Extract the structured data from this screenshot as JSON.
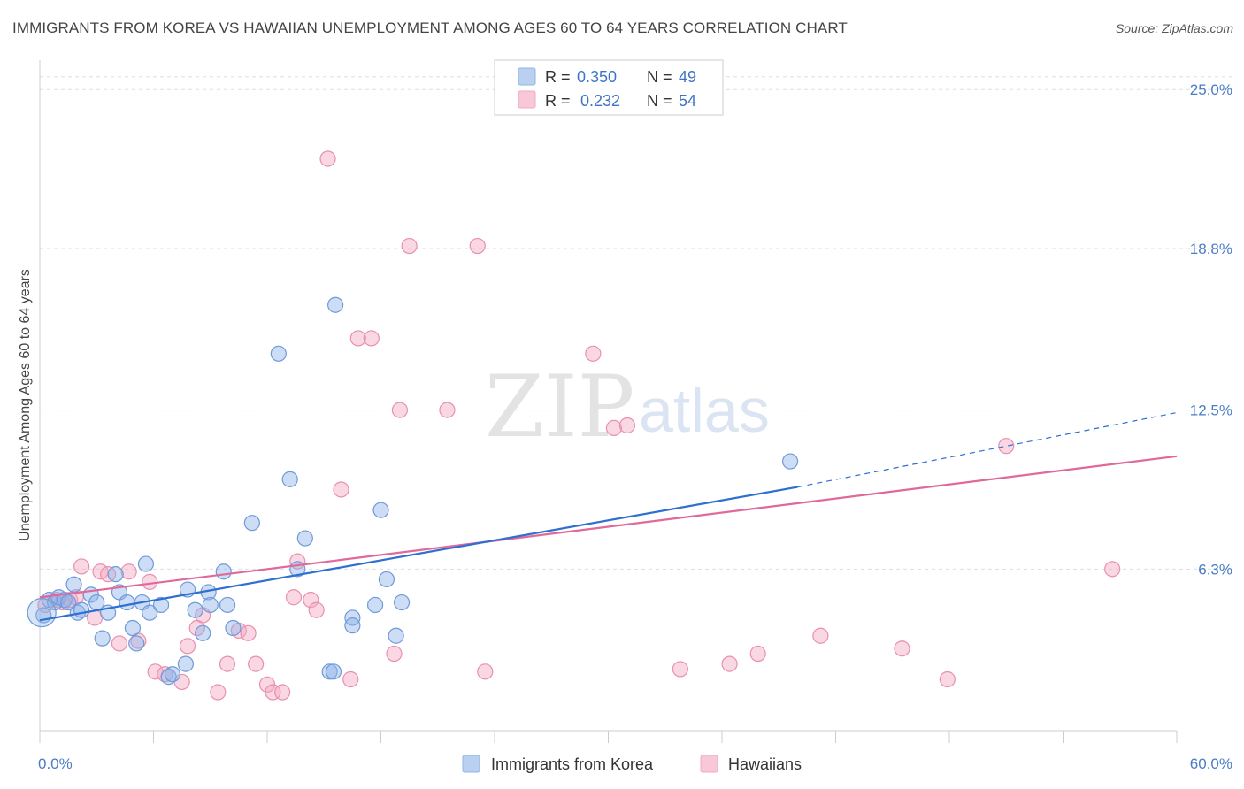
{
  "title": "IMMIGRANTS FROM KOREA VS HAWAIIAN UNEMPLOYMENT AMONG AGES 60 TO 64 YEARS CORRELATION CHART",
  "source": "Source: ZipAtlas.com",
  "watermark": {
    "zip": "ZIP",
    "atlas": "atlas"
  },
  "legend": {
    "korea": {
      "r_label": "R =",
      "r_value": "0.350",
      "n_label": "N =",
      "n_value": "49"
    },
    "hawaii": {
      "r_label": "R =",
      "r_value": "0.232",
      "n_label": "N =",
      "n_value": "54"
    }
  },
  "chart_data": {
    "type": "scatter",
    "title": "IMMIGRANTS FROM KOREA VS HAWAIIAN UNEMPLOYMENT AMONG AGES 60 TO 64 YEARS CORRELATION CHART",
    "xlabel": "",
    "ylabel": "Unemployment Among Ages 60 to 64 years",
    "xlim": [
      0,
      60
    ],
    "ylim": [
      0,
      25.8
    ],
    "x_tick_labels": [
      "0.0%",
      "60.0%"
    ],
    "y_ticks": [
      6.3,
      12.5,
      18.8,
      25.0
    ],
    "y_tick_labels": [
      "6.3%",
      "12.5%",
      "18.8%",
      "25.0%"
    ],
    "grid": true,
    "legend_position": "top-center",
    "colors": {
      "korea": "#8fb4e8",
      "korea_line": "#2e6fd0",
      "hawaii": "#f2a9c2",
      "hawaii_line": "#e0689a"
    },
    "series": [
      {
        "name": "Immigrants from Korea",
        "r": 0.35,
        "n": 49,
        "trend": {
          "x0": 0,
          "y0": 4.3,
          "x1": 40,
          "y1": 9.5,
          "dashed_to_x": 60,
          "dashed_to_y": 12.4
        },
        "points": [
          [
            0.2,
            4.5
          ],
          [
            0.5,
            5.1
          ],
          [
            0.8,
            5.0
          ],
          [
            1.0,
            5.2
          ],
          [
            1.3,
            5.1
          ],
          [
            1.5,
            5.0
          ],
          [
            1.8,
            5.7
          ],
          [
            2.0,
            4.6
          ],
          [
            2.2,
            4.7
          ],
          [
            2.7,
            5.3
          ],
          [
            3.0,
            5.0
          ],
          [
            3.3,
            3.6
          ],
          [
            3.6,
            4.6
          ],
          [
            4.0,
            6.1
          ],
          [
            4.2,
            5.4
          ],
          [
            4.6,
            5.0
          ],
          [
            4.9,
            4.0
          ],
          [
            5.1,
            3.4
          ],
          [
            5.4,
            5.0
          ],
          [
            5.6,
            6.5
          ],
          [
            5.8,
            4.6
          ],
          [
            6.4,
            4.9
          ],
          [
            6.8,
            2.1
          ],
          [
            7.0,
            2.2
          ],
          [
            7.7,
            2.6
          ],
          [
            7.8,
            5.5
          ],
          [
            8.2,
            4.7
          ],
          [
            8.6,
            3.8
          ],
          [
            8.9,
            5.4
          ],
          [
            9.0,
            4.9
          ],
          [
            9.7,
            6.2
          ],
          [
            9.9,
            4.9
          ],
          [
            10.2,
            4.0
          ],
          [
            11.2,
            8.1
          ],
          [
            12.6,
            14.7
          ],
          [
            13.2,
            9.8
          ],
          [
            13.6,
            6.3
          ],
          [
            14.0,
            7.5
          ],
          [
            15.3,
            2.3
          ],
          [
            15.5,
            2.3
          ],
          [
            15.6,
            16.6
          ],
          [
            16.5,
            4.4
          ],
          [
            16.5,
            4.1
          ],
          [
            17.7,
            4.9
          ],
          [
            18.0,
            8.6
          ],
          [
            18.3,
            5.9
          ],
          [
            18.8,
            3.7
          ],
          [
            19.1,
            5.0
          ],
          [
            39.6,
            10.5
          ]
        ]
      },
      {
        "name": "Hawaiians",
        "r": 0.232,
        "n": 54,
        "trend": {
          "x0": 0,
          "y0": 5.2,
          "x1": 60,
          "y1": 10.7
        },
        "points": [
          [
            0.3,
            4.9
          ],
          [
            0.9,
            5.1
          ],
          [
            1.2,
            5.0
          ],
          [
            1.6,
            5.1
          ],
          [
            1.9,
            5.2
          ],
          [
            2.2,
            6.4
          ],
          [
            2.9,
            4.4
          ],
          [
            3.2,
            6.2
          ],
          [
            3.6,
            6.1
          ],
          [
            4.2,
            3.4
          ],
          [
            4.7,
            6.2
          ],
          [
            5.2,
            3.5
          ],
          [
            5.8,
            5.8
          ],
          [
            6.1,
            2.3
          ],
          [
            6.6,
            2.2
          ],
          [
            7.5,
            1.9
          ],
          [
            7.8,
            3.3
          ],
          [
            8.3,
            4.0
          ],
          [
            8.6,
            4.5
          ],
          [
            9.4,
            1.5
          ],
          [
            9.9,
            2.6
          ],
          [
            10.5,
            3.9
          ],
          [
            11.0,
            3.8
          ],
          [
            11.4,
            2.6
          ],
          [
            12.0,
            1.8
          ],
          [
            12.3,
            1.5
          ],
          [
            12.8,
            1.5
          ],
          [
            13.4,
            5.2
          ],
          [
            13.6,
            6.6
          ],
          [
            14.3,
            5.1
          ],
          [
            14.6,
            4.7
          ],
          [
            15.2,
            22.3
          ],
          [
            15.9,
            9.4
          ],
          [
            16.4,
            2.0
          ],
          [
            16.8,
            15.3
          ],
          [
            17.5,
            15.3
          ],
          [
            18.7,
            3.0
          ],
          [
            19.0,
            12.5
          ],
          [
            19.5,
            18.9
          ],
          [
            21.5,
            12.5
          ],
          [
            23.1,
            18.9
          ],
          [
            23.5,
            2.3
          ],
          [
            28.5,
            24.5
          ],
          [
            29.2,
            14.7
          ],
          [
            30.3,
            11.8
          ],
          [
            31.0,
            11.9
          ],
          [
            33.8,
            2.4
          ],
          [
            36.4,
            2.6
          ],
          [
            37.9,
            3.0
          ],
          [
            41.2,
            3.7
          ],
          [
            45.5,
            3.2
          ],
          [
            47.9,
            2.0
          ],
          [
            51.0,
            11.1
          ],
          [
            56.6,
            6.3
          ]
        ]
      }
    ]
  },
  "bottom_legend": {
    "korea_label": "Immigrants from Korea",
    "hawaii_label": "Hawaiians"
  }
}
